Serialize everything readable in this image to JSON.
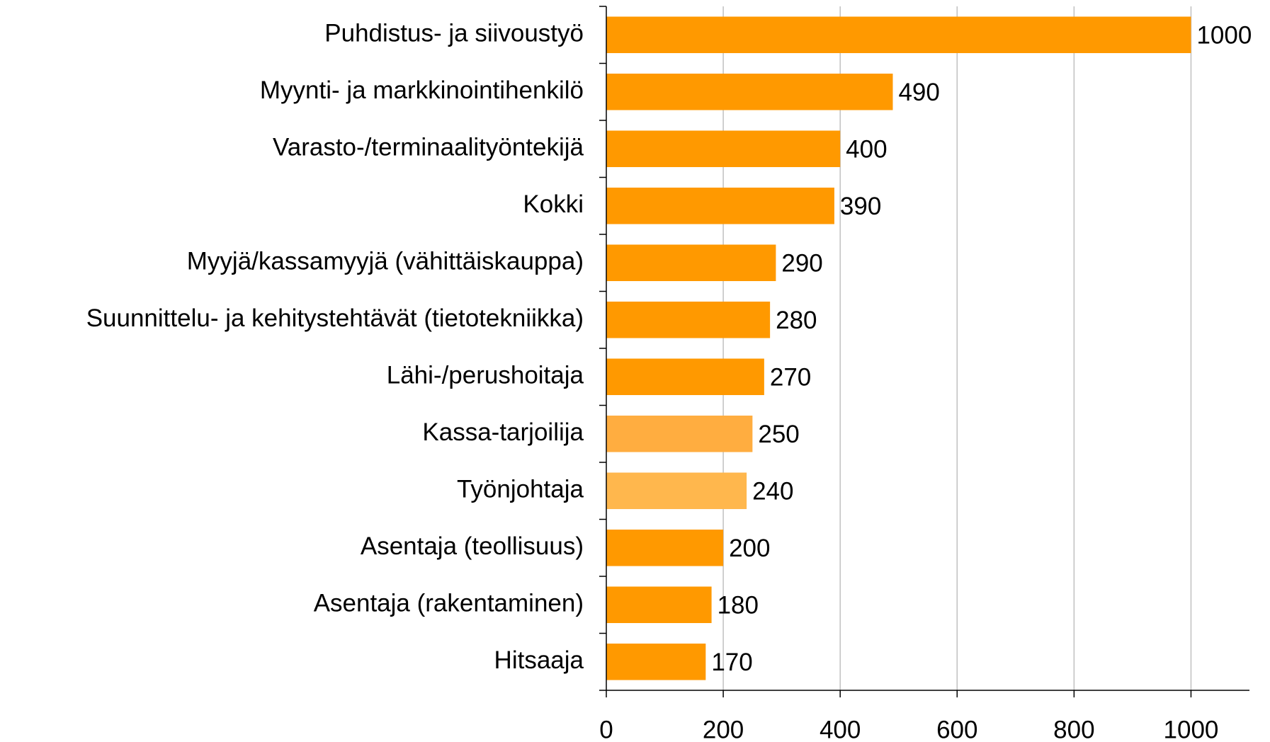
{
  "chart_data": {
    "type": "barh",
    "categories": [
      "Puhdistus- ja siivoustyö",
      "Myynti- ja markkinointihenkilö",
      "Varasto-/terminaalityöntekijä",
      "Kokki",
      "Myyjä/kassamyyjä (vähittäiskauppa)",
      "Suunnittelu- ja kehitystehtävät (tietotekniikka)",
      "Lähi-/perushoitaja",
      "Kassa-tarjoilija",
      "Työnjohtaja",
      "Asentaja (teollisuus)",
      "Asentaja (rakentaminen)",
      "Hitsaaja"
    ],
    "values": [
      1000,
      490,
      400,
      390,
      290,
      280,
      270,
      250,
      240,
      200,
      180,
      170
    ],
    "colors": [
      "#ff9900",
      "#ff9900",
      "#ff9900",
      "#ff9900",
      "#ff9900",
      "#ff9900",
      "#ff9900",
      "#ffad40",
      "#ffb74d",
      "#ff9900",
      "#ff9900",
      "#ff9900"
    ],
    "xlim": [
      0,
      1100
    ],
    "xticks": [
      0,
      200,
      400,
      600,
      800,
      1000
    ],
    "grid": true
  }
}
